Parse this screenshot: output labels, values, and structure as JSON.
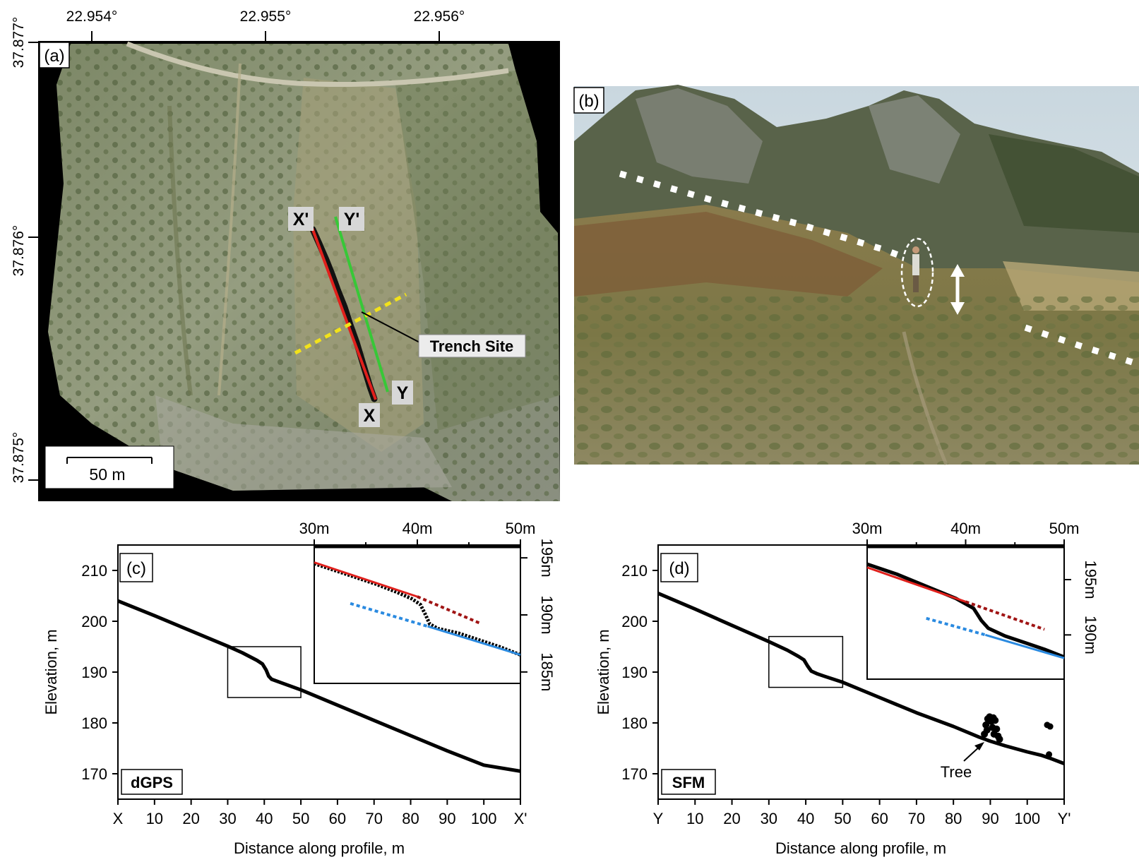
{
  "panels": {
    "a": {
      "label": "(a)",
      "lon_ticks": [
        "22.954°",
        "22.955°",
        "22.956°"
      ],
      "lat_ticks": [
        "37.877°",
        "37.876°",
        "37.875°"
      ],
      "markers": {
        "xp": "X'",
        "yp": "Y'",
        "x": "X",
        "y": "Y"
      },
      "callout": "Trench Site",
      "scale_bar": "50 m",
      "colors": {
        "profile_x": "#e0201c",
        "profile_y": "#37c837",
        "trench": "#f2e21a",
        "scarp": "#111111"
      }
    },
    "b": {
      "label": "(b)"
    }
  },
  "chart_data": [
    {
      "panel": "c",
      "label": "(c)",
      "type": "line",
      "method_label": "dGPS",
      "xlabel": "Distance along profile, m",
      "ylabel": "Elevation, m",
      "xticks": [
        "X",
        "10",
        "20",
        "30",
        "40",
        "50",
        "60",
        "70",
        "80",
        "90",
        "100",
        "X'"
      ],
      "yticks": [
        "170",
        "180",
        "190",
        "200",
        "210"
      ],
      "xlim": [
        0,
        110
      ],
      "ylim": [
        165,
        215
      ],
      "profile": [
        [
          0,
          204
        ],
        [
          10,
          201.1
        ],
        [
          20,
          198.1
        ],
        [
          30,
          195.1
        ],
        [
          34,
          193.8
        ],
        [
          38,
          192.3
        ],
        [
          39.5,
          191.6
        ],
        [
          40.5,
          190.4
        ],
        [
          41.2,
          189.2
        ],
        [
          42,
          188.6
        ],
        [
          45,
          187.8
        ],
        [
          50,
          186.5
        ],
        [
          60,
          183.5
        ],
        [
          70,
          180.5
        ],
        [
          80,
          177.5
        ],
        [
          90,
          174.5
        ],
        [
          100,
          171.7
        ],
        [
          110,
          170.5
        ]
      ],
      "zoom_box": {
        "x": [
          30,
          50
        ],
        "y": [
          185,
          195
        ]
      },
      "inset": {
        "xticks": [
          "30m",
          "40m",
          "50m"
        ],
        "yticks": [
          "195m",
          "190m",
          "185m"
        ],
        "xlim": [
          30,
          50
        ],
        "ylim": [
          184,
          196
        ],
        "profile": [
          [
            30,
            194.5
          ],
          [
            33,
            193.6
          ],
          [
            36,
            192.7
          ],
          [
            38,
            192.0
          ],
          [
            39.5,
            191.4
          ],
          [
            40.3,
            190.9
          ],
          [
            40.8,
            190.0
          ],
          [
            41.2,
            189.2
          ],
          [
            42,
            188.8
          ],
          [
            44,
            188.4
          ],
          [
            46,
            187.8
          ],
          [
            48,
            187.2
          ],
          [
            50,
            186.5
          ]
        ],
        "fits": [
          {
            "color": "#e0201c",
            "style": "solid",
            "x": [
              30,
              40
            ],
            "y": [
              194.6,
              191.6
            ]
          },
          {
            "color": "#a01414",
            "style": "dotted",
            "x": [
              40,
              46
            ],
            "y": [
              191.6,
              189.3
            ]
          },
          {
            "color": "#2a8ae0",
            "style": "dotted",
            "x": [
              33.5,
              41
            ],
            "y": [
              191.0,
              189.0
            ]
          },
          {
            "color": "#2a8ae0",
            "style": "solid",
            "x": [
              41,
              50
            ],
            "y": [
              189.0,
              186.5
            ]
          }
        ]
      }
    },
    {
      "panel": "d",
      "label": "(d)",
      "type": "line",
      "method_label": "SFM",
      "annotation": "Tree",
      "xlabel": "Distance along profile, m",
      "ylabel": "Elevation, m",
      "xticks": [
        "Y",
        "10",
        "20",
        "30",
        "40",
        "50",
        "60",
        "70",
        "80",
        "90",
        "100",
        "Y'"
      ],
      "yticks": [
        "170",
        "180",
        "190",
        "200",
        "210"
      ],
      "xlim": [
        0,
        110
      ],
      "ylim": [
        165,
        215
      ],
      "profile": [
        [
          0,
          205.5
        ],
        [
          10,
          202.4
        ],
        [
          20,
          199.2
        ],
        [
          30,
          196
        ],
        [
          35,
          194.3
        ],
        [
          38,
          193.1
        ],
        [
          39.5,
          192.4
        ],
        [
          40.5,
          191.2
        ],
        [
          41.5,
          190.2
        ],
        [
          43,
          189.7
        ],
        [
          45,
          189.2
        ],
        [
          50,
          188
        ],
        [
          60,
          185
        ],
        [
          70,
          182
        ],
        [
          80,
          179.3
        ],
        [
          87,
          177.2
        ],
        [
          90,
          176.4
        ],
        [
          94,
          175.5
        ],
        [
          100,
          174.3
        ],
        [
          104,
          173.6
        ],
        [
          106,
          173.1
        ],
        [
          110,
          172
        ]
      ],
      "tree_points": [
        [
          88.4,
          177.8
        ],
        [
          88.8,
          179.6
        ],
        [
          89.3,
          180.8
        ],
        [
          89.8,
          181.2
        ],
        [
          90.3,
          180.3
        ],
        [
          90.8,
          181.0
        ],
        [
          91.3,
          180.5
        ],
        [
          91.7,
          178.8
        ],
        [
          92.1,
          177.4
        ],
        [
          92.5,
          176.8
        ],
        [
          89.1,
          178.6
        ],
        [
          90.6,
          179.1
        ],
        [
          91.0,
          177.8
        ]
      ],
      "outlier_points": [
        [
          105.4,
          179.6
        ],
        [
          106.2,
          179.3
        ],
        [
          105.9,
          173.8
        ]
      ],
      "zoom_box": {
        "x": [
          30,
          50
        ],
        "y": [
          187,
          197
        ]
      },
      "inset": {
        "xticks": [
          "30m",
          "40m",
          "50m"
        ],
        "yticks": [
          "195m",
          "190m"
        ],
        "xlim": [
          30,
          50
        ],
        "ylim": [
          186,
          198
        ],
        "profile": [
          [
            30,
            196.4
          ],
          [
            33,
            195.5
          ],
          [
            36,
            194.4
          ],
          [
            39,
            193.3
          ],
          [
            40.8,
            192.4
          ],
          [
            41.6,
            191.3
          ],
          [
            42.3,
            190.6
          ],
          [
            44,
            189.9
          ],
          [
            46,
            189.3
          ],
          [
            48,
            188.7
          ],
          [
            50,
            188.0
          ]
        ],
        "fits": [
          {
            "color": "#e0201c",
            "style": "solid",
            "x": [
              30,
              40
            ],
            "y": [
              196.1,
              193.0
            ]
          },
          {
            "color": "#a01414",
            "style": "dotted",
            "x": [
              40,
              48
            ],
            "y": [
              193.0,
              190.5
            ]
          },
          {
            "color": "#2a8ae0",
            "style": "dotted",
            "x": [
              36,
              42
            ],
            "y": [
              191.5,
              190.0
            ]
          },
          {
            "color": "#2a8ae0",
            "style": "solid",
            "x": [
              42,
              50
            ],
            "y": [
              190.0,
              187.9
            ]
          }
        ]
      }
    }
  ]
}
